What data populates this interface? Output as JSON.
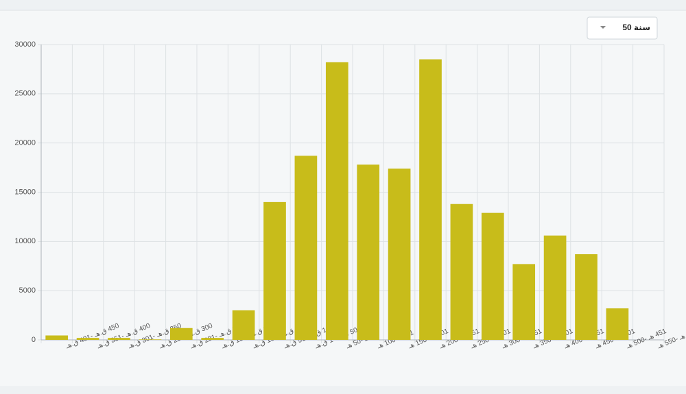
{
  "dropdown": {
    "label": "50 سنة"
  },
  "chart_data": {
    "type": "bar",
    "categories": [
      "450 ق.هـ -401 ق.هـ",
      "400 ق.هـ -351 ق.هـ",
      "350 ق.هـ -301 ق.هـ",
      "300 ق.هـ -251 ق.هـ",
      "250 ق.هـ -201 ق.هـ",
      "200 ق.هـ -151 ق.هـ",
      "150 ق.هـ -101 ق.هـ",
      "100 ق.هـ -51 ق.هـ",
      "50 ق.هـ -1 ق.هـ",
      "1 هـ -50 هـ",
      "51 هـ -100 هـ",
      "101 هـ -150 هـ",
      "151 هـ -200 هـ",
      "201 هـ -250 هـ",
      "251 هـ -300 هـ",
      "301 هـ -350 هـ",
      "351 هـ -400 هـ",
      "401 هـ -450 هـ",
      "451 هـ -500 هـ",
      "501 هـ -550 هـ"
    ],
    "values": [
      450,
      200,
      200,
      50,
      1200,
      200,
      3000,
      14000,
      18700,
      28200,
      17800,
      17400,
      28500,
      13800,
      12900,
      7700,
      10600,
      8700,
      3200,
      0
    ],
    "color": "#c8bc1a",
    "ylim": [
      0,
      30000
    ],
    "yticks": [
      0,
      5000,
      10000,
      15000,
      20000,
      25000,
      30000
    ],
    "grid": true
  }
}
